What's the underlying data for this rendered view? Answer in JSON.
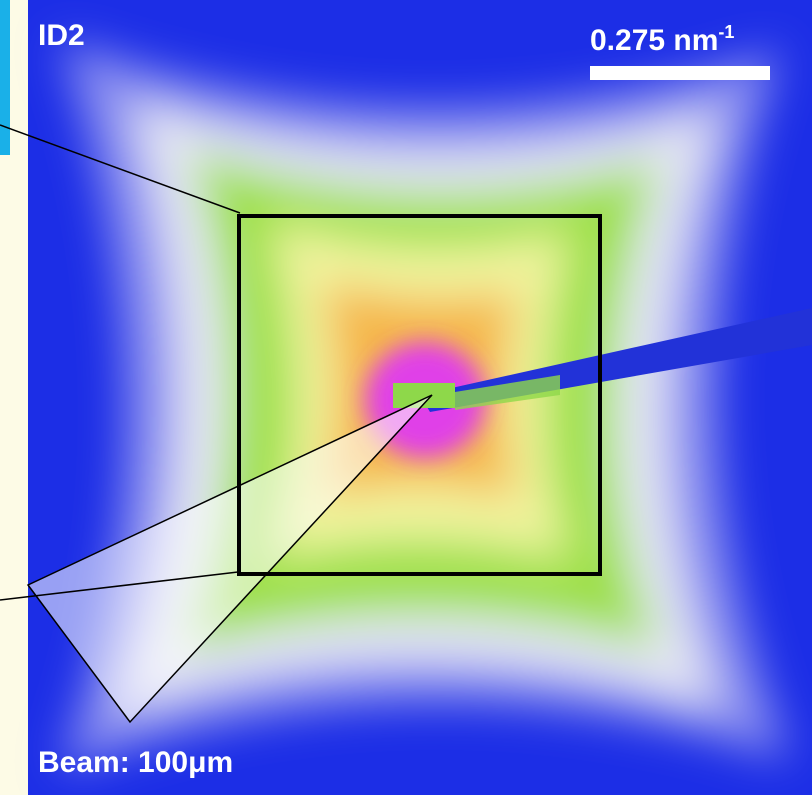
{
  "labels": {
    "id": "ID2",
    "scale": "0.275 nm",
    "scale_exponent": "-1",
    "beam": "Beam: 100μm"
  }
}
